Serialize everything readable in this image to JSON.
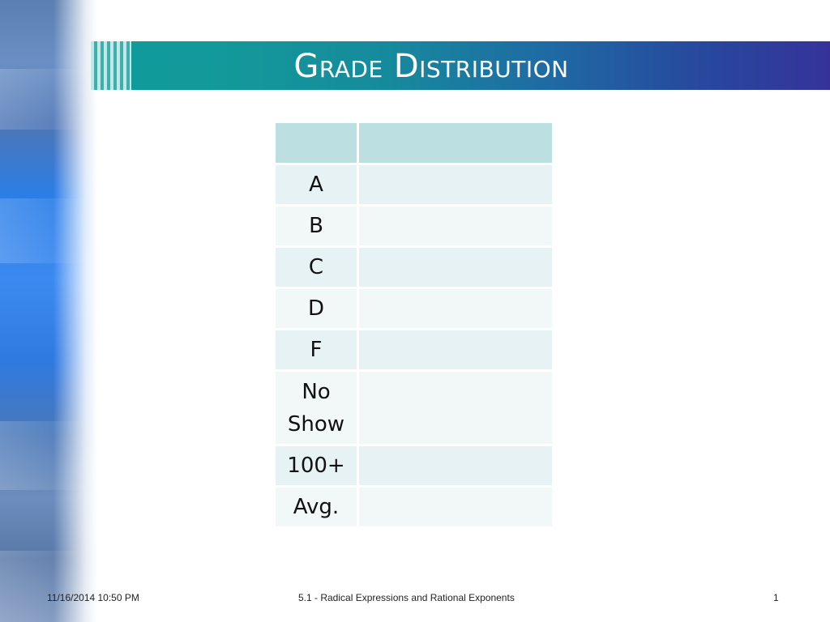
{
  "slide": {
    "title": "Grade Distribution",
    "table": {
      "header": [
        "",
        ""
      ],
      "rows": [
        {
          "grade": "A",
          "value": ""
        },
        {
          "grade": "B",
          "value": ""
        },
        {
          "grade": "C",
          "value": ""
        },
        {
          "grade": "D",
          "value": ""
        },
        {
          "grade": "F",
          "value": ""
        },
        {
          "grade": "No Show",
          "value": ""
        },
        {
          "grade": "100+",
          "value": ""
        },
        {
          "grade": "Avg.",
          "value": ""
        }
      ]
    },
    "footer": {
      "date": "11/16/2014 10:50 PM",
      "center": "5.1 - Radical Expressions and Rational Exponents",
      "page_number": "1"
    },
    "colors": {
      "title_bar_start": "#0f9a9a",
      "title_bar_end": "#35339a",
      "table_header": "#bcdfe2",
      "table_row_odd": "#e6f2f3",
      "table_row_even": "#f2f8f8"
    }
  }
}
